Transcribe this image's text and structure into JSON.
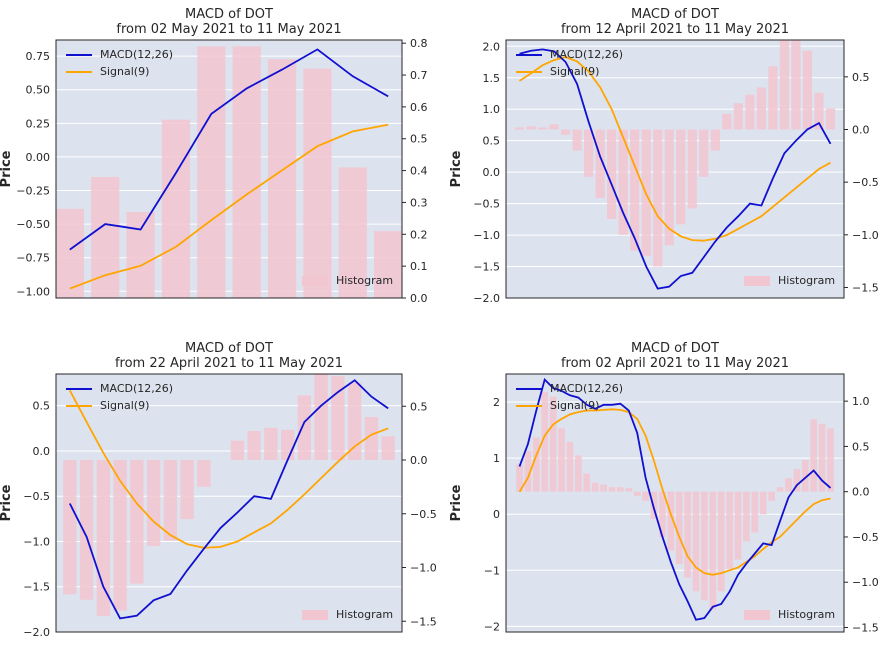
{
  "colors": {
    "panel_bg": "#dde3ee",
    "grid": "#ffffff",
    "macd": "#1010d0",
    "signal": "#ffa500",
    "histogram": "#f2c6d0",
    "text": "#262626"
  },
  "chart_data": [
    {
      "type": "line",
      "title": "MACD of DOT",
      "subtitle": "from 02 May 2021 to 11 May 2021",
      "ylabel": "Price",
      "ylim": [
        -1.05,
        0.87
      ],
      "y2lim": [
        0.0,
        0.81
      ],
      "yticks": [
        -1.0,
        -0.75,
        -0.5,
        -0.25,
        0.0,
        0.25,
        0.5,
        0.75
      ],
      "ytick_labels": [
        "−1.00",
        "−0.75",
        "−0.50",
        "−0.25",
        "0.00",
        "0.25",
        "0.50",
        "0.75"
      ],
      "y2ticks": [
        0.0,
        0.1,
        0.2,
        0.3,
        0.4,
        0.5,
        0.6,
        0.7,
        0.8
      ],
      "y2tick_labels": [
        "0.0",
        "0.1",
        "0.2",
        "0.3",
        "0.4",
        "0.5",
        "0.6",
        "0.7",
        "0.8"
      ],
      "grid": true,
      "legend_position": "top-left",
      "series": [
        {
          "name": "MACD(12,26)",
          "axis": "left",
          "values": [
            -0.69,
            -0.5,
            -0.54,
            -0.12,
            0.32,
            0.51,
            0.65,
            0.8,
            0.6,
            0.45
          ]
        },
        {
          "name": "Signal(9)",
          "axis": "left",
          "values": [
            -0.98,
            -0.88,
            -0.81,
            -0.67,
            -0.47,
            -0.28,
            -0.1,
            0.08,
            0.19,
            0.24
          ]
        },
        {
          "name": "Histogram",
          "axis": "right",
          "type": "bar",
          "values": [
            0.28,
            0.38,
            0.27,
            0.56,
            0.79,
            0.79,
            0.75,
            0.72,
            0.41,
            0.21
          ]
        }
      ],
      "histogram_legend_position": "bottom-right"
    },
    {
      "type": "line",
      "title": "MACD of DOT",
      "subtitle": "from 12 April 2021 to 11 May 2021",
      "ylabel": "Price",
      "ylim": [
        -2.0,
        2.1
      ],
      "y2lim": [
        -1.6,
        0.85
      ],
      "yticks": [
        -2.0,
        -1.5,
        -1.0,
        -0.5,
        0.0,
        0.5,
        1.0,
        1.5,
        2.0
      ],
      "ytick_labels": [
        "−2.0",
        "−1.5",
        "−1.0",
        "−0.5",
        "0.0",
        "0.5",
        "1.0",
        "1.5",
        "2.0"
      ],
      "y2ticks": [
        -1.5,
        -1.0,
        -0.5,
        0.0,
        0.5
      ],
      "y2tick_labels": [
        "−1.5",
        "−1.0",
        "−0.5",
        "0.0",
        "0.5"
      ],
      "grid": true,
      "legend_position": "top-left",
      "series": [
        {
          "name": "MACD(12,26)",
          "axis": "left",
          "values": [
            1.88,
            1.93,
            1.95,
            1.92,
            1.75,
            1.4,
            0.8,
            0.25,
            -0.2,
            -0.65,
            -1.05,
            -1.5,
            -1.85,
            -1.82,
            -1.65,
            -1.6,
            -1.35,
            -1.1,
            -0.88,
            -0.7,
            -0.5,
            -0.53,
            -0.1,
            0.3,
            0.5,
            0.68,
            0.78,
            0.45
          ]
        },
        {
          "name": "Signal(9)",
          "axis": "left",
          "values": [
            1.45,
            1.57,
            1.7,
            1.78,
            1.83,
            1.76,
            1.6,
            1.35,
            1.0,
            0.55,
            0.1,
            -0.35,
            -0.7,
            -0.9,
            -1.02,
            -1.08,
            -1.09,
            -1.06,
            -1.0,
            -0.9,
            -0.8,
            -0.7,
            -0.55,
            -0.4,
            -0.25,
            -0.1,
            0.05,
            0.15
          ]
        },
        {
          "name": "Histogram",
          "axis": "right",
          "type": "bar",
          "values": [
            0.02,
            0.03,
            0.02,
            0.05,
            -0.05,
            -0.2,
            -0.45,
            -0.65,
            -0.85,
            -1.0,
            -1.15,
            -1.2,
            -1.3,
            -1.1,
            -0.9,
            -0.75,
            -0.45,
            -0.2,
            0.15,
            0.25,
            0.33,
            0.4,
            0.6,
            0.85,
            0.85,
            0.75,
            0.35,
            0.2
          ]
        }
      ],
      "histogram_legend_position": "bottom-right"
    },
    {
      "type": "line",
      "title": "MACD of DOT",
      "subtitle": "from 22 April 2021 to 11 May 2021",
      "ylabel": "Price",
      "ylim": [
        -2.0,
        0.85
      ],
      "y2lim": [
        -1.6,
        0.8
      ],
      "yticks": [
        -2.0,
        -1.5,
        -1.0,
        -0.5,
        0.0,
        0.5
      ],
      "ytick_labels": [
        "−2.0",
        "−1.5",
        "−1.0",
        "−0.5",
        "0.0",
        "0.5"
      ],
      "y2ticks": [
        -1.5,
        -1.0,
        -0.5,
        0.0,
        0.5
      ],
      "y2tick_labels": [
        "−1.5",
        "−1.0",
        "−0.5",
        "0.0",
        "0.5"
      ],
      "grid": true,
      "legend_position": "top-left",
      "series": [
        {
          "name": "MACD(12,26)",
          "axis": "left",
          "values": [
            -0.58,
            -0.95,
            -1.5,
            -1.85,
            -1.82,
            -1.65,
            -1.58,
            -1.32,
            -1.08,
            -0.85,
            -0.68,
            -0.5,
            -0.53,
            -0.1,
            0.32,
            0.5,
            0.65,
            0.78,
            0.6,
            0.47
          ]
        },
        {
          "name": "Signal(9)",
          "axis": "left",
          "values": [
            0.67,
            0.32,
            -0.02,
            -0.33,
            -0.58,
            -0.78,
            -0.93,
            -1.03,
            -1.07,
            -1.06,
            -1.0,
            -0.9,
            -0.8,
            -0.65,
            -0.48,
            -0.3,
            -0.12,
            0.05,
            0.18,
            0.25
          ]
        },
        {
          "name": "Histogram",
          "axis": "right",
          "type": "bar",
          "values": [
            -1.25,
            -1.3,
            -1.45,
            -1.4,
            -1.15,
            -0.8,
            -0.75,
            -0.55,
            -0.25,
            0.0,
            0.18,
            0.27,
            0.3,
            0.28,
            0.6,
            0.8,
            0.78,
            0.72,
            0.4,
            0.22
          ]
        }
      ],
      "histogram_legend_position": "bottom-right"
    },
    {
      "type": "line",
      "title": "MACD of DOT",
      "subtitle": "from 02 April 2021 to 11 May 2021",
      "ylabel": "Price",
      "ylim": [
        -2.1,
        2.5
      ],
      "y2lim": [
        -1.55,
        1.3
      ],
      "yticks": [
        -2,
        -1,
        0,
        1,
        2
      ],
      "ytick_labels": [
        "−2",
        "−1",
        "0",
        "1",
        "2"
      ],
      "y2ticks": [
        -1.5,
        -1.0,
        -0.5,
        0.0,
        0.5,
        1.0
      ],
      "y2tick_labels": [
        "−1.5",
        "−1.0",
        "−0.5",
        "0.0",
        "0.5",
        "1.0"
      ],
      "grid": true,
      "legend_position": "top-left",
      "series": [
        {
          "name": "MACD(12,26)",
          "axis": "left",
          "values": [
            0.85,
            1.25,
            1.85,
            2.4,
            2.25,
            2.2,
            2.12,
            2.08,
            1.95,
            1.88,
            1.95,
            1.95,
            1.97,
            1.85,
            1.45,
            0.65,
            0.1,
            -0.4,
            -0.85,
            -1.25,
            -1.55,
            -1.88,
            -1.85,
            -1.65,
            -1.6,
            -1.38,
            -1.08,
            -0.88,
            -0.7,
            -0.52,
            -0.55,
            -0.12,
            0.3,
            0.52,
            0.65,
            0.78,
            0.6,
            0.47
          ]
        },
        {
          "name": "Signal(9)",
          "axis": "left",
          "values": [
            0.4,
            0.65,
            1.05,
            1.4,
            1.6,
            1.7,
            1.78,
            1.82,
            1.85,
            1.85,
            1.86,
            1.87,
            1.86,
            1.82,
            1.7,
            1.4,
            0.95,
            0.45,
            0.0,
            -0.4,
            -0.75,
            -0.95,
            -1.05,
            -1.08,
            -1.05,
            -1.0,
            -0.95,
            -0.85,
            -0.75,
            -0.62,
            -0.5,
            -0.4,
            -0.25,
            -0.1,
            0.05,
            0.18,
            0.25,
            0.28
          ]
        },
        {
          "name": "Histogram",
          "axis": "right",
          "type": "bar",
          "values": [
            0.3,
            0.45,
            0.6,
            1.1,
            1.05,
            0.7,
            0.55,
            0.4,
            0.2,
            0.1,
            0.08,
            0.05,
            0.05,
            0.04,
            -0.05,
            -0.1,
            -0.3,
            -0.5,
            -0.65,
            -0.8,
            -0.95,
            -1.1,
            -1.2,
            -1.3,
            -1.1,
            -0.85,
            -0.75,
            -0.55,
            -0.45,
            -0.25,
            -0.1,
            0.05,
            0.15,
            0.25,
            0.35,
            0.8,
            0.75,
            0.7
          ]
        }
      ],
      "histogram_legend_position": "bottom-right"
    }
  ]
}
